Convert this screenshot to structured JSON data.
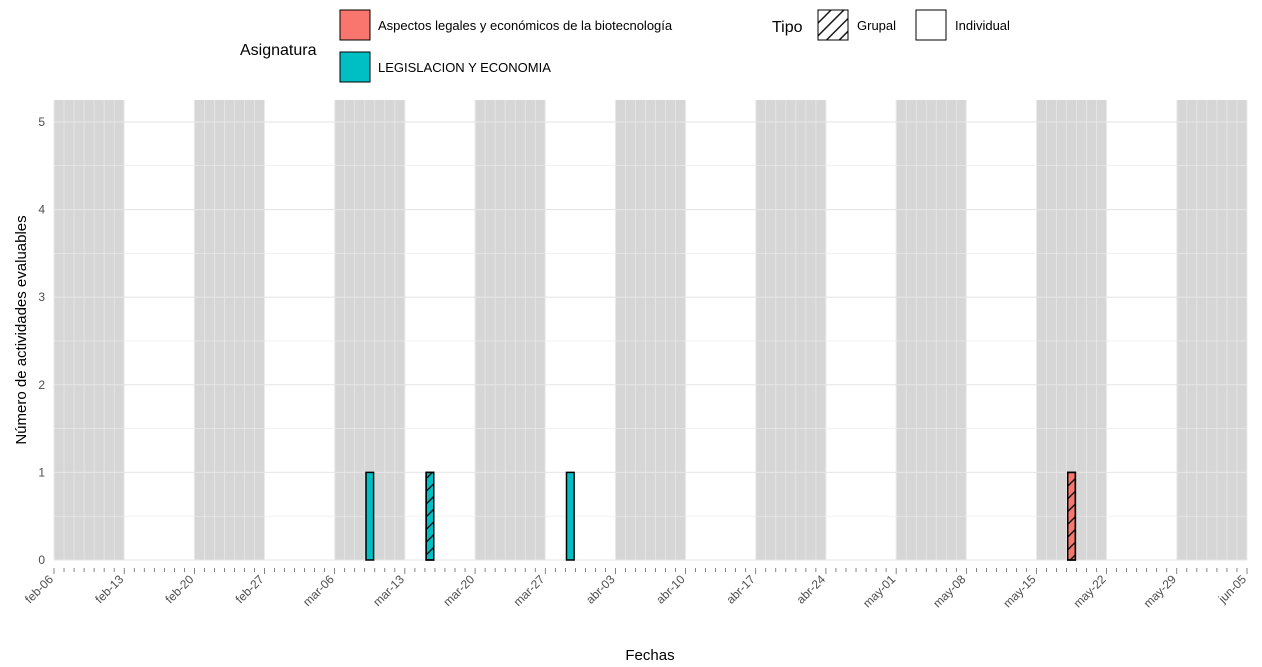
{
  "chart_data": {
    "type": "bar",
    "xlabel": "Fechas",
    "ylabel": "Número de actividades evaluables",
    "x_start": "2022-02-06",
    "x_end": "2022-06-05",
    "ylim": [
      0,
      5.25
    ],
    "y_ticks": [
      "0",
      "1",
      "2",
      "3",
      "4",
      "5"
    ],
    "x_ticks": [
      "feb-06",
      "feb-13",
      "feb-20",
      "feb-27",
      "mar-06",
      "mar-13",
      "mar-20",
      "mar-27",
      "abr-03",
      "abr-10",
      "abr-17",
      "abr-24",
      "may-01",
      "may-08",
      "may-15",
      "may-22",
      "may-29",
      "jun-05"
    ],
    "shaded_weeks_start": [
      "2022-02-06",
      "2022-02-20",
      "2022-03-06",
      "2022-03-20",
      "2022-04-03",
      "2022-04-17",
      "2022-05-01",
      "2022-05-15",
      "2022-05-29"
    ],
    "shaded_color": "#d6d6d6",
    "grid": true,
    "legend": {
      "position": "top",
      "asignatura_title": "Asignatura",
      "tipo_title": "Tipo",
      "asignaturas": [
        {
          "name": "Aspectos legales y económicos de la biotecnología",
          "color": "#f8766d"
        },
        {
          "name": "LEGISLACION Y ECONOMIA",
          "color": "#00bfc4"
        }
      ],
      "tipos": [
        {
          "name": "Grupal",
          "pattern": "stripes"
        },
        {
          "name": "Individual",
          "pattern": "none"
        }
      ]
    },
    "bars": [
      {
        "date": "2022-03-09",
        "value": 1,
        "asignatura": "LEGISLACION Y ECONOMIA",
        "tipo": "Individual"
      },
      {
        "date": "2022-03-15",
        "value": 1,
        "asignatura": "LEGISLACION Y ECONOMIA",
        "tipo": "Grupal"
      },
      {
        "date": "2022-03-29",
        "value": 1,
        "asignatura": "LEGISLACION Y ECONOMIA",
        "tipo": "Individual"
      },
      {
        "date": "2022-05-18",
        "value": 1,
        "asignatura": "Aspectos legales y económicos de la biotecnología",
        "tipo": "Grupal"
      }
    ]
  }
}
